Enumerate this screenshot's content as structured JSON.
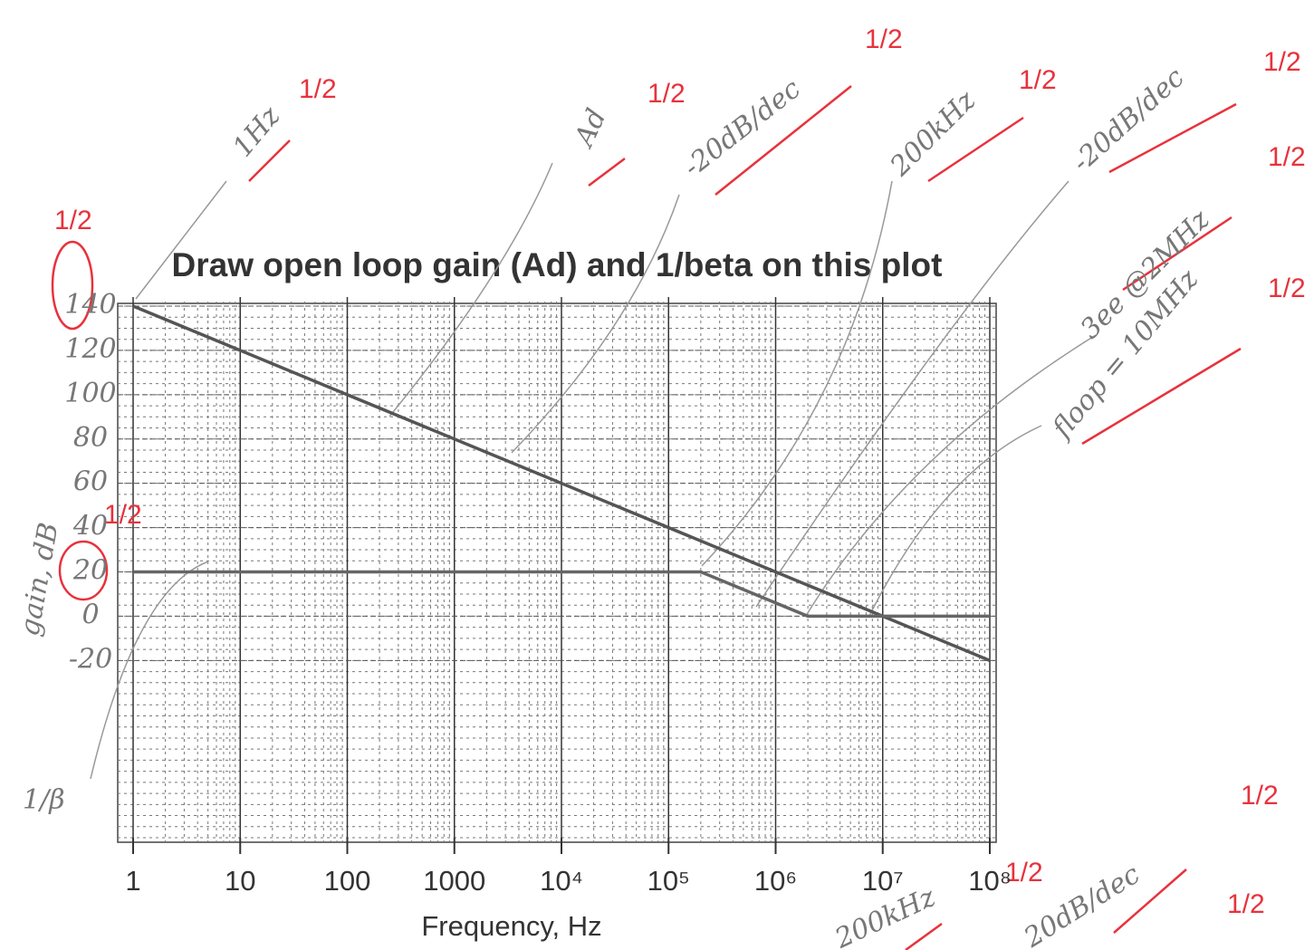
{
  "chart_data": {
    "type": "line",
    "title": "Draw open loop gain (Ad) and 1/beta on this plot",
    "xlabel": "Frequency, Hz",
    "xscale": "log",
    "grid": true,
    "xlim": [
      1,
      100000000
    ],
    "xticks": [
      1,
      10,
      100,
      1000,
      {
        "value": 10000,
        "label": "10⁴"
      },
      {
        "value": 100000,
        "label": "10⁵"
      },
      {
        "value": 1000000,
        "label": "10⁶"
      },
      {
        "value": 10000000,
        "label": "10⁷"
      },
      {
        "value": 100000000,
        "label": "10⁸"
      }
    ],
    "ylabel": "gain, dB",
    "ylim": [
      -100,
      140
    ],
    "yticks": [
      140,
      120,
      100,
      80,
      60,
      40,
      20,
      0,
      -20
    ],
    "series": [
      {
        "name": "Ad",
        "color": "#555555",
        "x": [
          1,
          10000000,
          100000000
        ],
        "values": [
          140,
          0,
          -20
        ]
      },
      {
        "name": "1/β",
        "color": "#666666",
        "x": [
          1,
          200000,
          2000000,
          100000000
        ],
        "values": [
          20,
          20,
          0,
          0
        ]
      }
    ],
    "annotations": [
      "1Hz",
      "1/2",
      "-20dB/dec",
      "1/2",
      "200kHz",
      "1/2",
      "-20dB/dec",
      "1/2",
      "1/2",
      "3ee @2MHz",
      "1/2",
      "floop = 10MHz",
      "1/2",
      "1/2",
      "1/2",
      "200kHz",
      "1/2",
      "20dB/dec",
      "1/2"
    ]
  }
}
